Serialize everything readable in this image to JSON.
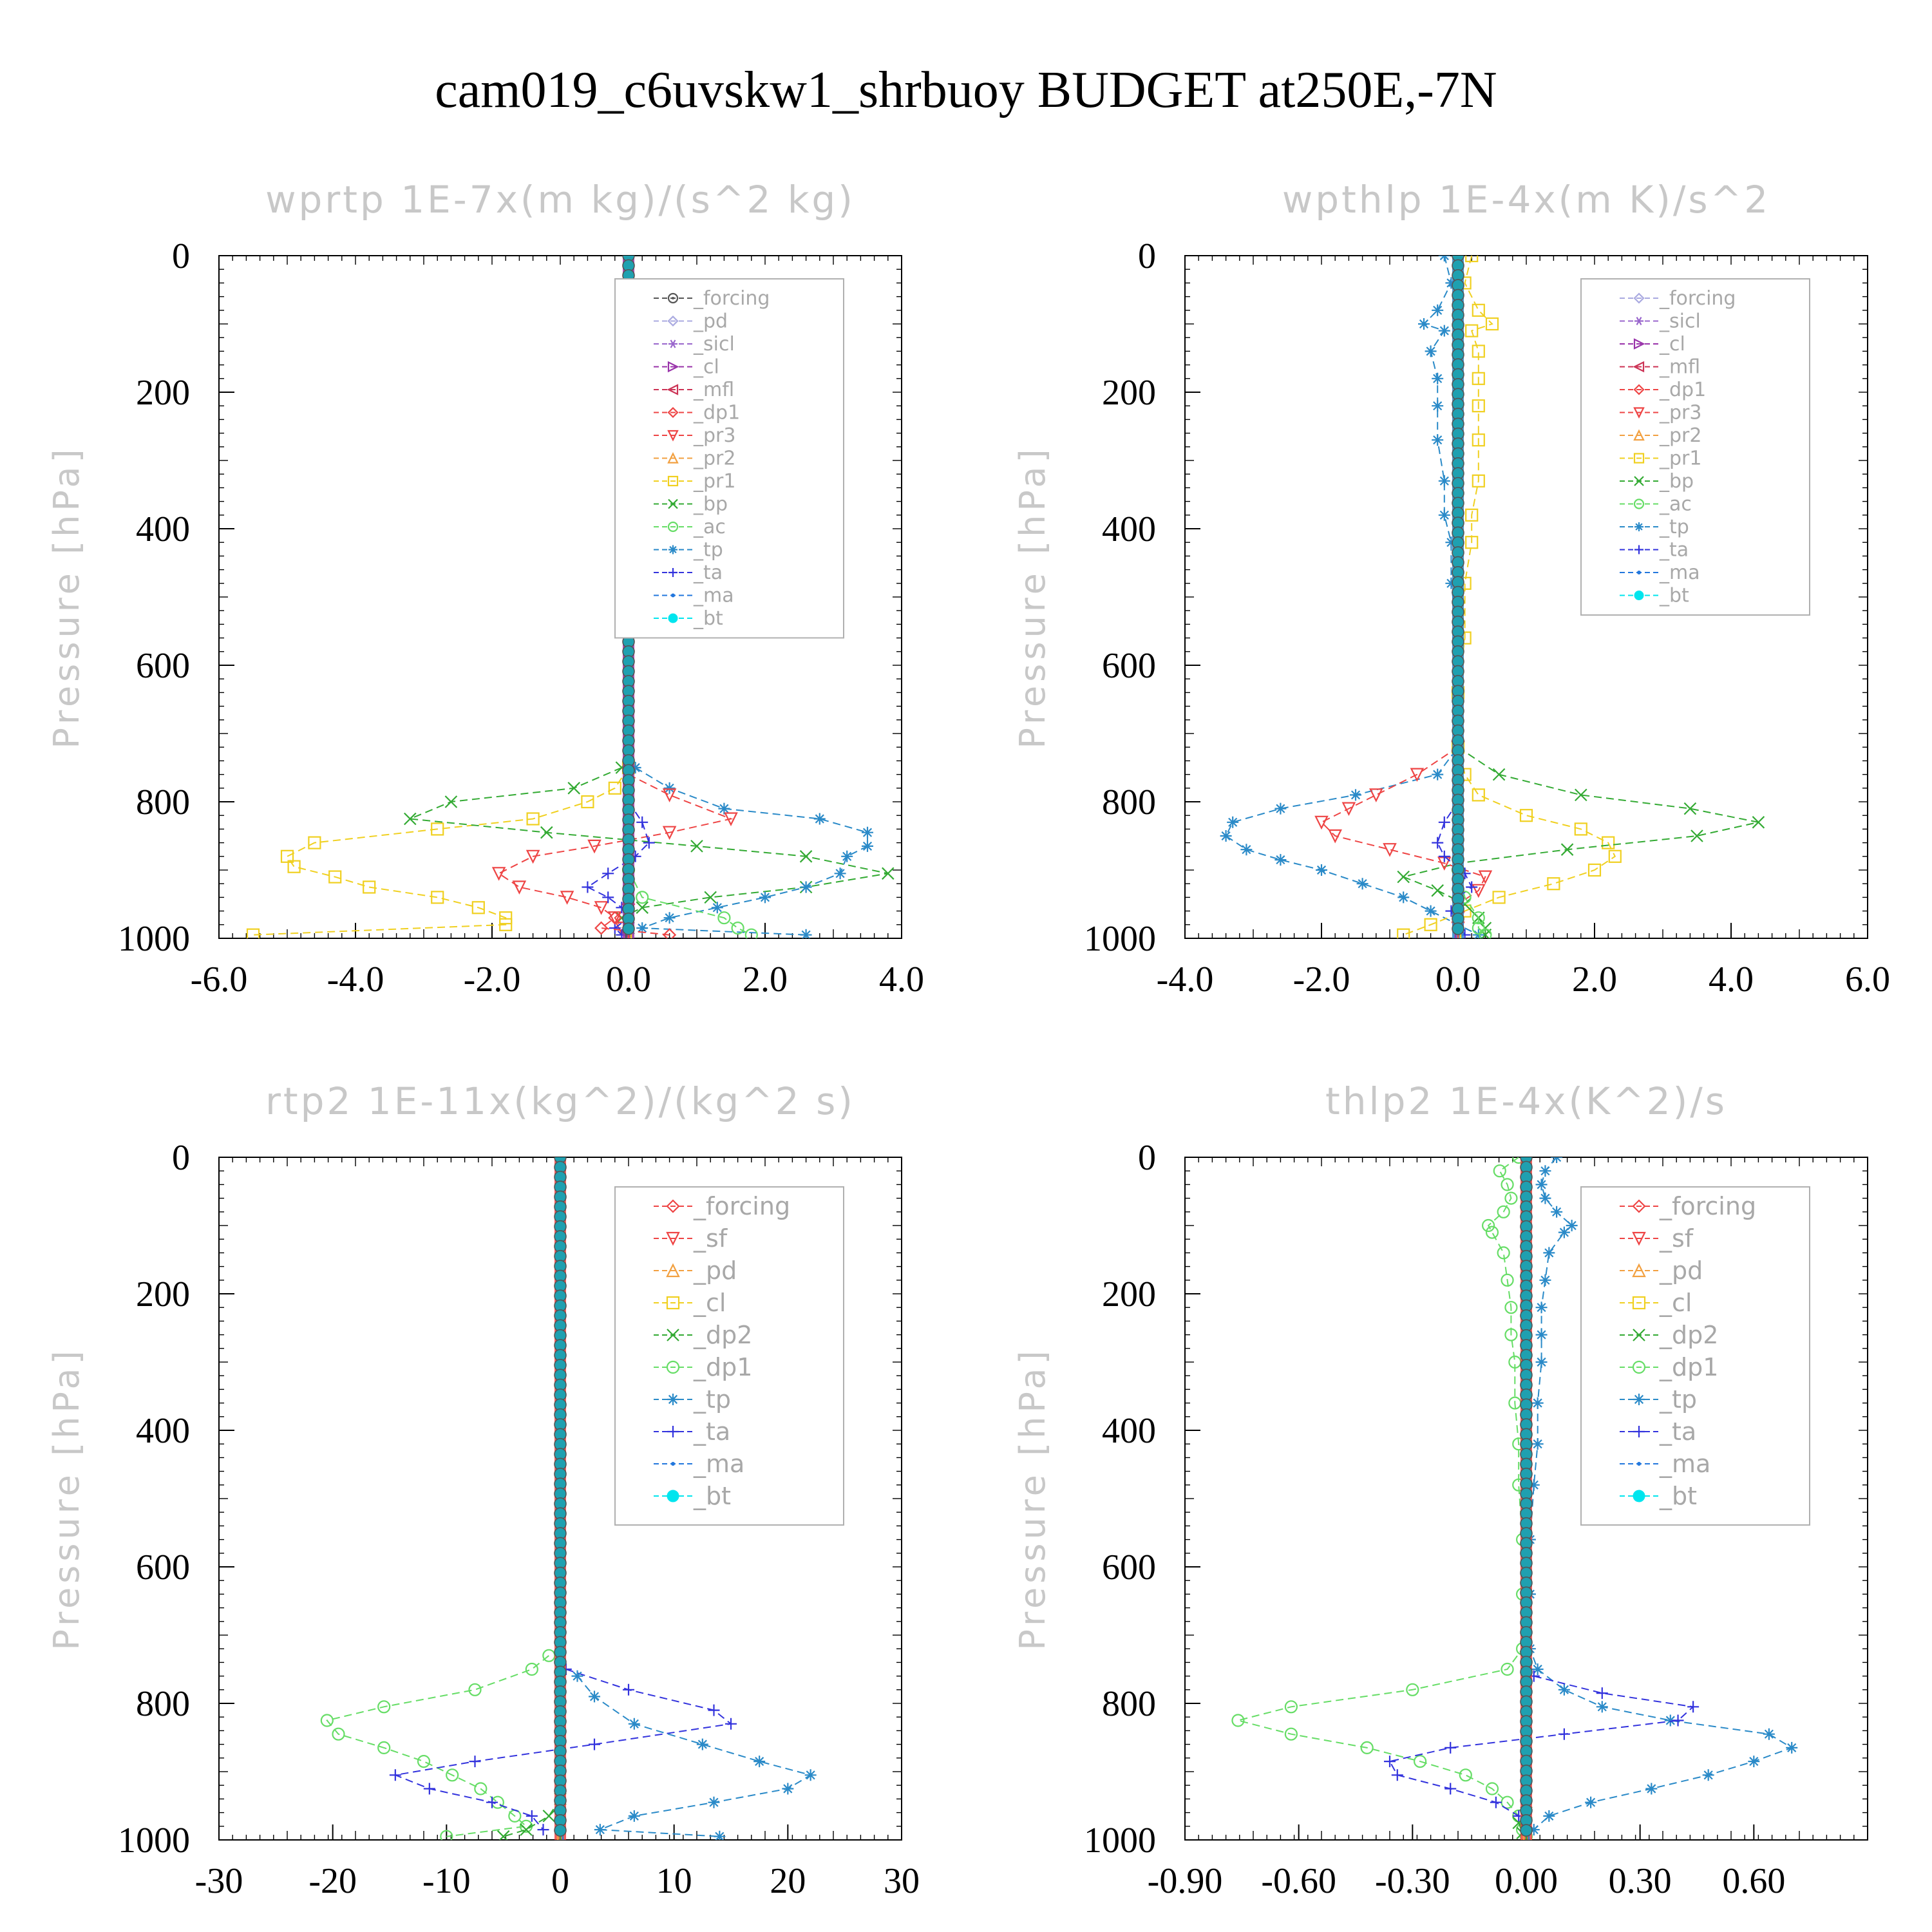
{
  "title": "cam019_c6uvskw1_shrbuoy  BUDGET at250E,-7N",
  "styles": {
    "_forcing": {
      "color": "#555555",
      "marker": "circle-dot"
    },
    "_pd": {
      "color": "#a9a9e0",
      "marker": "diamond"
    },
    "_sicl": {
      "color": "#9966cc",
      "marker": "star"
    },
    "_cl": {
      "color": "#9933aa",
      "marker": "tri-right"
    },
    "_mfl": {
      "color": "#cc3355",
      "marker": "tri-left"
    },
    "_dp1": {
      "color": "#ee4444",
      "marker": "diamond"
    },
    "_pr3": {
      "color": "#ee4444",
      "marker": "tri-down"
    },
    "_pr2": {
      "color": "#f2a040",
      "marker": "tri-up"
    },
    "_pr1": {
      "color": "#f0d020",
      "marker": "square"
    },
    "_bp": {
      "color": "#33aa33",
      "marker": "x"
    },
    "_ac": {
      "color": "#66dd66",
      "marker": "circle"
    },
    "_tp": {
      "color": "#2a8ac8",
      "marker": "asterisk"
    },
    "_ta": {
      "color": "#3333dd",
      "marker": "plus"
    },
    "_ma": {
      "color": "#2277dd",
      "marker": "dot"
    },
    "_bt": {
      "color": "#00e5ee",
      "marker": "filled-circle"
    },
    "_sf": {
      "color": "#ee4444",
      "marker": "tri-down"
    },
    "_pd2": {
      "color": "#f2a040",
      "marker": "tri-up"
    },
    "_cl2": {
      "color": "#f0d020",
      "marker": "square"
    },
    "_dp2": {
      "color": "#33aa33",
      "marker": "x"
    },
    "_dp1g": {
      "color": "#66dd66",
      "marker": "circle"
    },
    "_forcing2": {
      "color": "#ee4444",
      "marker": "diamond"
    }
  },
  "chart_data": [
    {
      "type": "line",
      "title": "wprtp  1E-7x(m kg)/(s^2 kg)",
      "ylabel": "Pressure [hPa]",
      "xlim": [
        -6.0,
        4.0
      ],
      "ylim": [
        0,
        1000
      ],
      "xticks": [
        "-6.0",
        "-4.0",
        "-2.0",
        "0.0",
        "2.0",
        "4.0"
      ],
      "xtick_values": [
        -6,
        -4,
        -2,
        0,
        2,
        4
      ],
      "yticks": [
        "0",
        "200",
        "400",
        "600",
        "800",
        "1000"
      ],
      "legend": [
        "_forcing",
        "_pd",
        "_sicl",
        "_cl",
        "_mfl",
        "_dp1",
        "_pr3",
        "_pr2",
        "_pr1",
        "_bp",
        "_ac",
        "_tp",
        "_ta",
        "_ma",
        "_bt"
      ],
      "legend_styles": [
        "_forcing",
        "_pd",
        "_sicl",
        "_cl",
        "_mfl",
        "_dp1",
        "_pr3",
        "_pr2",
        "_pr1",
        "_bp",
        "_ac",
        "_tp",
        "_ta",
        "_ma",
        "_bt"
      ],
      "series": [
        {
          "name": "_pr1",
          "style": "_pr1",
          "p": [
            750,
            780,
            800,
            825,
            840,
            860,
            880,
            895,
            910,
            925,
            940,
            955,
            970,
            980,
            995
          ],
          "v": [
            0.0,
            -0.2,
            -0.6,
            -1.4,
            -2.8,
            -4.6,
            -5.0,
            -4.9,
            -4.3,
            -3.8,
            -2.8,
            -2.2,
            -1.8,
            -1.8,
            -5.5
          ]
        },
        {
          "name": "_bp",
          "style": "_bp",
          "p": [
            750,
            780,
            800,
            825,
            845,
            865,
            880,
            905,
            925,
            940,
            955,
            970,
            985,
            995
          ],
          "v": [
            -0.1,
            -0.8,
            -2.6,
            -3.2,
            -1.2,
            1.0,
            2.6,
            3.8,
            2.6,
            1.2,
            0.2,
            -0.1,
            0.0,
            0.0
          ]
        },
        {
          "name": "_tp",
          "style": "_tp",
          "p": [
            750,
            780,
            810,
            825,
            845,
            865,
            880,
            905,
            925,
            940,
            955,
            970,
            985,
            995
          ],
          "v": [
            0.1,
            0.6,
            1.4,
            2.8,
            3.5,
            3.5,
            3.2,
            3.1,
            2.6,
            2.0,
            1.3,
            0.6,
            0.2,
            2.6
          ]
        },
        {
          "name": "_pr3",
          "style": "_pr3",
          "p": [
            760,
            790,
            825,
            845,
            865,
            880,
            905,
            925,
            940,
            955,
            970,
            985
          ],
          "v": [
            0.0,
            0.6,
            1.5,
            0.6,
            -0.5,
            -1.4,
            -1.9,
            -1.6,
            -0.9,
            -0.4,
            -0.2,
            -0.1
          ]
        },
        {
          "name": "_ta",
          "style": "_ta",
          "p": [
            800,
            830,
            860,
            880,
            905,
            925,
            940,
            955,
            970,
            985,
            995
          ],
          "v": [
            0.0,
            0.2,
            0.3,
            0.1,
            -0.3,
            -0.6,
            -0.3,
            -0.1,
            0.0,
            -0.2,
            -0.1
          ]
        },
        {
          "name": "_dp1",
          "style": "_dp1",
          "p": [
            950,
            970,
            985,
            995
          ],
          "v": [
            0.0,
            -0.2,
            -0.4,
            0.6
          ]
        },
        {
          "name": "_ac",
          "style": "_ac",
          "p": [
            900,
            940,
            970,
            985,
            995
          ],
          "v": [
            0.0,
            0.2,
            1.4,
            1.6,
            1.8
          ]
        }
      ]
    },
    {
      "type": "line",
      "title": "wpthlp  1E-4x(m K)/s^2",
      "ylabel": "Pressure [hPa]",
      "xlim": [
        -4.0,
        6.0
      ],
      "ylim": [
        0,
        1000
      ],
      "xticks": [
        "-4.0",
        "-2.0",
        "0.0",
        "2.0",
        "4.0",
        "6.0"
      ],
      "xtick_values": [
        -4,
        -2,
        0,
        2,
        4,
        6
      ],
      "yticks": [
        "0",
        "200",
        "400",
        "600",
        "800",
        "1000"
      ],
      "legend": [
        "_forcing",
        "_sicl",
        "_cl",
        "_mfl",
        "_dp1",
        "_pr3",
        "_pr2",
        "_pr1",
        "_bp",
        "_ac",
        "_tp",
        "_ta",
        "_ma",
        "_bt"
      ],
      "legend_styles": [
        "_pd",
        "_sicl",
        "_cl",
        "_mfl",
        "_dp1",
        "_pr3",
        "_pr2",
        "_pr1",
        "_bp",
        "_ac",
        "_tp",
        "_ta",
        "_ma",
        "_bt"
      ],
      "series": [
        {
          "name": "_tp",
          "style": "_tp",
          "p": [
            0,
            40,
            80,
            100,
            110,
            140,
            180,
            220,
            270,
            330,
            380,
            420,
            480,
            560,
            640,
            720,
            760,
            790,
            810,
            830,
            850,
            870,
            885,
            900,
            920,
            940,
            960,
            980,
            995
          ],
          "v": [
            -0.2,
            -0.1,
            -0.3,
            -0.5,
            -0.2,
            -0.4,
            -0.3,
            -0.3,
            -0.3,
            -0.2,
            -0.2,
            -0.1,
            -0.1,
            0.0,
            0.0,
            0.0,
            -0.3,
            -1.5,
            -2.6,
            -3.3,
            -3.4,
            -3.1,
            -2.6,
            -2.0,
            -1.4,
            -0.8,
            -0.4,
            0.0,
            0.3
          ]
        },
        {
          "name": "_pr1",
          "style": "_pr1",
          "p": [
            0,
            40,
            80,
            100,
            110,
            140,
            180,
            220,
            270,
            330,
            380,
            420,
            480,
            560,
            640,
            720,
            760,
            790,
            820,
            840,
            860,
            880,
            900,
            920,
            940,
            960,
            980,
            995
          ],
          "v": [
            0.2,
            0.1,
            0.3,
            0.5,
            0.2,
            0.3,
            0.3,
            0.3,
            0.3,
            0.3,
            0.2,
            0.2,
            0.1,
            0.1,
            0.0,
            0.0,
            0.1,
            0.3,
            1.0,
            1.8,
            2.2,
            2.3,
            2.0,
            1.4,
            0.6,
            0.1,
            -0.4,
            -0.8
          ]
        },
        {
          "name": "_bp",
          "style": "_bp",
          "p": [
            720,
            760,
            790,
            810,
            830,
            850,
            870,
            890,
            910,
            930,
            950,
            970,
            985,
            995
          ],
          "v": [
            0.0,
            0.6,
            1.8,
            3.4,
            4.4,
            3.5,
            1.6,
            0.0,
            -0.8,
            -0.3,
            0.1,
            0.3,
            0.4,
            0.4
          ]
        },
        {
          "name": "_pr3",
          "style": "_pr3",
          "p": [
            720,
            760,
            790,
            810,
            830,
            850,
            870,
            890,
            910,
            930,
            950,
            970,
            985
          ],
          "v": [
            0.0,
            -0.6,
            -1.2,
            -1.6,
            -2.0,
            -1.8,
            -1.0,
            -0.2,
            0.4,
            0.3,
            0.0,
            0.0,
            0.0
          ]
        },
        {
          "name": "_ta",
          "style": "_ta",
          "p": [
            800,
            830,
            860,
            880,
            905,
            925,
            940,
            960,
            980,
            995
          ],
          "v": [
            0.0,
            -0.2,
            -0.3,
            -0.2,
            0.1,
            0.2,
            0.0,
            -0.1,
            0.0,
            0.1
          ]
        },
        {
          "name": "_ac",
          "style": "_ac",
          "p": [
            900,
            940,
            970,
            985,
            995
          ],
          "v": [
            0.0,
            0.1,
            0.3,
            0.3,
            0.4
          ]
        }
      ]
    },
    {
      "type": "line",
      "title": "rtp2  1E-11x(kg^2)/(kg^2 s)",
      "ylabel": "Pressure [hPa]",
      "xlim": [
        -30,
        30
      ],
      "ylim": [
        0,
        1000
      ],
      "xticks": [
        "-30",
        "-20",
        "-10",
        "0",
        "10",
        "20",
        "30"
      ],
      "xtick_values": [
        -30,
        -20,
        -10,
        0,
        10,
        20,
        30
      ],
      "yticks": [
        "0",
        "200",
        "400",
        "600",
        "800",
        "1000"
      ],
      "legend": [
        "_forcing",
        "_sf",
        "_pd",
        "_cl",
        "_dp2",
        "_dp1",
        "_tp",
        "_ta",
        "_ma",
        "_bt"
      ],
      "legend_styles": [
        "_forcing2",
        "_sf",
        "_pd2",
        "_cl2",
        "_dp2",
        "_dp1g",
        "_tp",
        "_ta",
        "_ma",
        "_bt"
      ],
      "series": [
        {
          "name": "_dp1",
          "style": "_dp1g",
          "p": [
            730,
            750,
            780,
            805,
            825,
            845,
            865,
            885,
            905,
            925,
            945,
            965,
            980,
            995
          ],
          "v": [
            -1.0,
            -2.5,
            -7.5,
            -15.5,
            -20.5,
            -19.5,
            -15.5,
            -12.0,
            -9.5,
            -7.0,
            -5.5,
            -4.0,
            -3.0,
            -10.0
          ]
        },
        {
          "name": "_ta",
          "style": "_ta",
          "p": [
            750,
            780,
            810,
            830,
            860,
            885,
            905,
            925,
            945,
            965,
            985
          ],
          "v": [
            0.5,
            6.0,
            13.5,
            15.0,
            3.0,
            -7.5,
            -14.5,
            -11.5,
            -6.0,
            -2.5,
            -1.5
          ]
        },
        {
          "name": "_tp",
          "style": "_tp",
          "p": [
            760,
            790,
            830,
            860,
            885,
            905,
            925,
            945,
            965,
            985,
            995
          ],
          "v": [
            1.5,
            3.0,
            6.5,
            12.5,
            17.5,
            22.0,
            20.0,
            13.5,
            6.5,
            3.5,
            14.0
          ]
        },
        {
          "name": "_dp2",
          "style": "_dp2",
          "p": [
            940,
            965,
            985,
            995
          ],
          "v": [
            0.0,
            -1.0,
            -3.0,
            -5.0
          ]
        }
      ]
    },
    {
      "type": "line",
      "title": "thlp2  1E-4x(K^2)/s",
      "ylabel": "Pressure [hPa]",
      "xlim": [
        -0.9,
        0.9
      ],
      "ylim": [
        0,
        1000
      ],
      "xticks": [
        "-0.90",
        "-0.60",
        "-0.30",
        "0.00",
        "0.30",
        "0.60"
      ],
      "xtick_values": [
        -0.9,
        -0.6,
        -0.3,
        0.0,
        0.3,
        0.6
      ],
      "yticks": [
        "0",
        "200",
        "400",
        "600",
        "800",
        "1000"
      ],
      "legend": [
        "_forcing",
        "_sf",
        "_pd",
        "_cl",
        "_dp2",
        "_dp1",
        "_tp",
        "_ta",
        "_ma",
        "_bt"
      ],
      "legend_styles": [
        "_forcing2",
        "_sf",
        "_pd2",
        "_cl2",
        "_dp2",
        "_dp1g",
        "_tp",
        "_ta",
        "_ma",
        "_bt"
      ],
      "series": [
        {
          "name": "_dp1",
          "style": "_dp1g",
          "p": [
            0,
            20,
            40,
            60,
            80,
            100,
            110,
            140,
            180,
            220,
            260,
            300,
            360,
            420,
            480,
            560,
            640,
            720,
            750,
            780,
            805,
            825,
            845,
            865,
            885,
            905,
            925,
            945,
            965,
            985,
            995
          ],
          "v": [
            -0.02,
            -0.07,
            -0.05,
            -0.04,
            -0.06,
            -0.1,
            -0.09,
            -0.06,
            -0.05,
            -0.04,
            -0.04,
            -0.03,
            -0.03,
            -0.02,
            -0.02,
            -0.01,
            -0.01,
            -0.01,
            -0.05,
            -0.3,
            -0.62,
            -0.76,
            -0.62,
            -0.42,
            -0.28,
            -0.16,
            -0.09,
            -0.05,
            -0.02,
            -0.01,
            0.0
          ]
        },
        {
          "name": "_tp",
          "style": "_tp",
          "p": [
            0,
            20,
            40,
            60,
            80,
            100,
            110,
            140,
            180,
            220,
            260,
            300,
            360,
            420,
            480,
            560,
            640,
            720,
            750,
            780,
            805,
            825,
            845,
            865,
            885,
            905,
            925,
            945,
            965,
            985
          ],
          "v": [
            0.08,
            0.05,
            0.04,
            0.05,
            0.08,
            0.12,
            0.1,
            0.06,
            0.05,
            0.04,
            0.04,
            0.04,
            0.03,
            0.03,
            0.02,
            0.01,
            0.01,
            0.01,
            0.03,
            0.1,
            0.2,
            0.38,
            0.64,
            0.7,
            0.6,
            0.48,
            0.33,
            0.17,
            0.06,
            0.02
          ]
        },
        {
          "name": "_ta",
          "style": "_ta",
          "p": [
            760,
            785,
            805,
            825,
            845,
            865,
            885,
            905,
            925,
            945,
            965,
            985
          ],
          "v": [
            0.02,
            0.2,
            0.44,
            0.4,
            0.1,
            -0.2,
            -0.36,
            -0.34,
            -0.2,
            -0.08,
            -0.02,
            0.0
          ]
        },
        {
          "name": "_dp2",
          "style": "_dp2",
          "p": [
            960,
            975,
            990
          ],
          "v": [
            0.0,
            -0.02,
            -0.01
          ]
        }
      ]
    }
  ]
}
